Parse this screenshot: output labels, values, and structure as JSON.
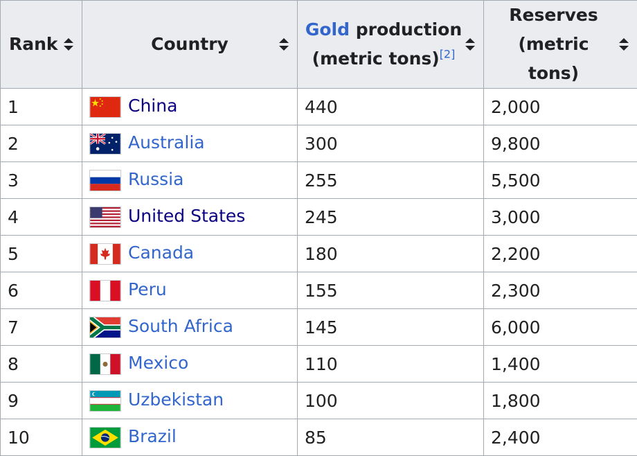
{
  "headers": {
    "rank": "Rank",
    "country": "Country",
    "gold_link": "Gold",
    "production_rest": " production",
    "production_unit": "(metric tons)",
    "production_ref": "[2]",
    "reserves_line1": "Reserves",
    "reserves_line2": "(metric tons)"
  },
  "rows": [
    {
      "rank": "1",
      "country": "China",
      "flag": "china-flag-icon",
      "production": "440",
      "reserves": "2,000"
    },
    {
      "rank": "2",
      "country": "Australia",
      "flag": "australia-flag-icon",
      "production": "300",
      "reserves": "9,800"
    },
    {
      "rank": "3",
      "country": "Russia",
      "flag": "russia-flag-icon",
      "production": "255",
      "reserves": "5,500"
    },
    {
      "rank": "4",
      "country": "United States",
      "flag": "united-states-flag-icon",
      "production": "245",
      "reserves": "3,000"
    },
    {
      "rank": "5",
      "country": "Canada",
      "flag": "canada-flag-icon",
      "production": "180",
      "reserves": "2,200"
    },
    {
      "rank": "6",
      "country": "Peru",
      "flag": "peru-flag-icon",
      "production": "155",
      "reserves": "2,300"
    },
    {
      "rank": "7",
      "country": "South Africa",
      "flag": "south-africa-flag-icon",
      "production": "145",
      "reserves": "6,000"
    },
    {
      "rank": "8",
      "country": "Mexico",
      "flag": "mexico-flag-icon",
      "production": "110",
      "reserves": "1,400"
    },
    {
      "rank": "9",
      "country": "Uzbekistan",
      "flag": "uzbekistan-flag-icon",
      "production": "100",
      "reserves": "1,800"
    },
    {
      "rank": "10",
      "country": "Brazil",
      "flag": "brazil-flag-icon",
      "production": "85",
      "reserves": "2,400"
    }
  ],
  "colors": {
    "link": "#3366cc",
    "visited_link": "#0b0080",
    "header_bg": "#eaecf0",
    "border": "#a2a9b1",
    "text": "#202122"
  }
}
